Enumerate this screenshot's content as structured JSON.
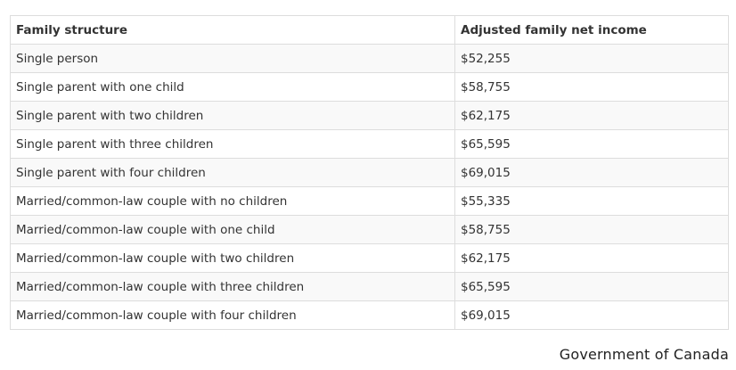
{
  "table": {
    "headers": [
      "Family structure",
      "Adjusted family net income"
    ],
    "rows": [
      [
        "Single person",
        "$52,255"
      ],
      [
        "Single parent with one child",
        "$58,755"
      ],
      [
        "Single parent with two children",
        "$62,175"
      ],
      [
        "Single parent with three children",
        "$65,595"
      ],
      [
        "Single parent with four children",
        "$69,015"
      ],
      [
        "Married/common-law couple with no children",
        "$55,335"
      ],
      [
        "Married/common-law couple with one child",
        "$58,755"
      ],
      [
        "Married/common-law couple with two children",
        "$62,175"
      ],
      [
        "Married/common-law couple with three children",
        "$65,595"
      ],
      [
        "Married/common-law couple with four children",
        "$69,015"
      ]
    ]
  },
  "attribution": "Government of Canada",
  "colors": {
    "border": "#dddddd",
    "stripe": "#f9f9f9",
    "text": "#333333"
  }
}
